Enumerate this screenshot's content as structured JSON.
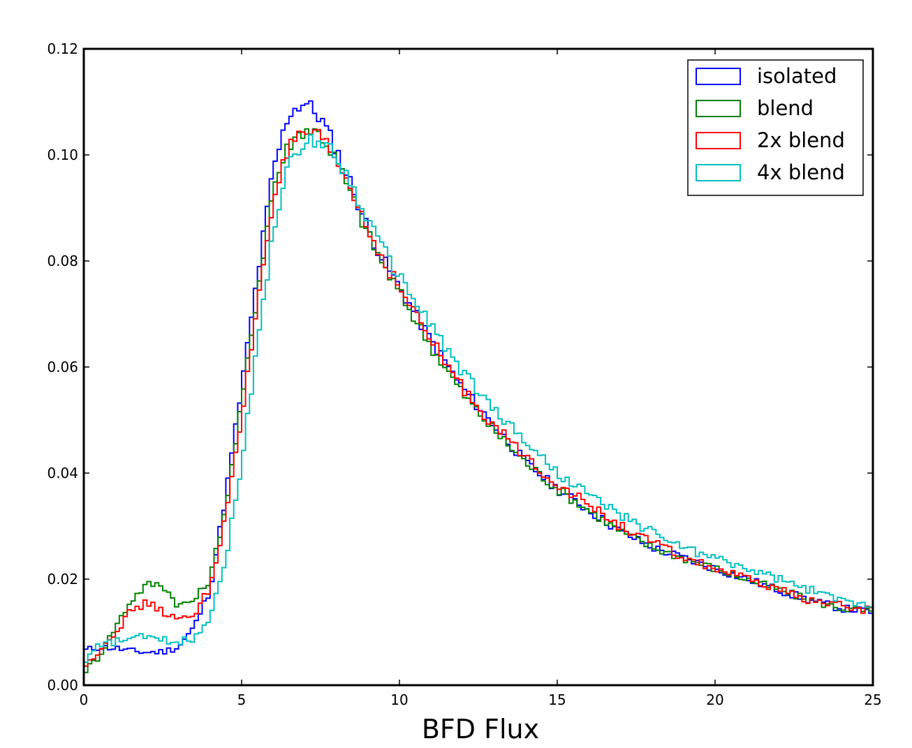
{
  "chart_data": {
    "type": "line",
    "title": "",
    "xlabel": "BFD Flux",
    "ylabel": "",
    "xlim": [
      0,
      25
    ],
    "ylim": [
      0,
      0.12
    ],
    "x_ticks": [
      0,
      5,
      10,
      15,
      20,
      25
    ],
    "x_tick_labels": [
      "0",
      "5",
      "10",
      "15",
      "20",
      "25"
    ],
    "y_ticks": [
      0,
      0.02,
      0.04,
      0.06,
      0.08,
      0.1,
      0.12
    ],
    "y_tick_labels": [
      "0.00",
      "0.02",
      "0.04",
      "0.06",
      "0.08",
      "0.10",
      "0.12"
    ],
    "grid": false,
    "legend": "top-right",
    "style": "step-histogram",
    "x": [
      0,
      0.5,
      1,
      1.5,
      2,
      2.5,
      3,
      3.5,
      4,
      4.5,
      5,
      5.5,
      6,
      6.5,
      7,
      7.5,
      8,
      8.5,
      9,
      9.5,
      10,
      11,
      12,
      13,
      14,
      15,
      16,
      17,
      18,
      19,
      20,
      21,
      22,
      23,
      24,
      25
    ],
    "series": [
      {
        "name": "isolated",
        "color": "#0000ff",
        "values": [
          0.0065,
          0.0072,
          0.007,
          0.0064,
          0.0062,
          0.0063,
          0.0072,
          0.011,
          0.018,
          0.036,
          0.056,
          0.077,
          0.097,
          0.108,
          0.11,
          0.107,
          0.101,
          0.094,
          0.086,
          0.08,
          0.075,
          0.065,
          0.056,
          0.049,
          0.042,
          0.037,
          0.033,
          0.029,
          0.026,
          0.024,
          0.022,
          0.02,
          0.018,
          0.016,
          0.0145,
          0.0138
        ]
      },
      {
        "name": "blend",
        "color": "#008000",
        "values": [
          0.0025,
          0.0055,
          0.011,
          0.016,
          0.019,
          0.019,
          0.015,
          0.016,
          0.02,
          0.034,
          0.053,
          0.074,
          0.094,
          0.102,
          0.105,
          0.104,
          0.099,
          0.092,
          0.085,
          0.079,
          0.074,
          0.064,
          0.055,
          0.048,
          0.042,
          0.037,
          0.033,
          0.029,
          0.026,
          0.024,
          0.022,
          0.02,
          0.018,
          0.016,
          0.0145,
          0.0138
        ]
      },
      {
        "name": "2x blend",
        "color": "#ff0000",
        "values": [
          0.003,
          0.0068,
          0.01,
          0.014,
          0.0155,
          0.014,
          0.012,
          0.0135,
          0.0185,
          0.032,
          0.05,
          0.072,
          0.092,
          0.101,
          0.104,
          0.103,
          0.099,
          0.093,
          0.086,
          0.08,
          0.075,
          0.065,
          0.056,
          0.049,
          0.043,
          0.038,
          0.034,
          0.03,
          0.027,
          0.024,
          0.022,
          0.02,
          0.018,
          0.016,
          0.015,
          0.014
        ]
      },
      {
        "name": "4x blend",
        "color": "#00bfbf",
        "values": [
          0.0045,
          0.0075,
          0.0082,
          0.0088,
          0.0092,
          0.0085,
          0.0082,
          0.0088,
          0.013,
          0.024,
          0.042,
          0.064,
          0.086,
          0.098,
          0.102,
          0.103,
          0.1,
          0.094,
          0.088,
          0.082,
          0.077,
          0.068,
          0.059,
          0.052,
          0.046,
          0.04,
          0.036,
          0.032,
          0.029,
          0.026,
          0.024,
          0.022,
          0.02,
          0.018,
          0.016,
          0.0152
        ]
      }
    ]
  }
}
